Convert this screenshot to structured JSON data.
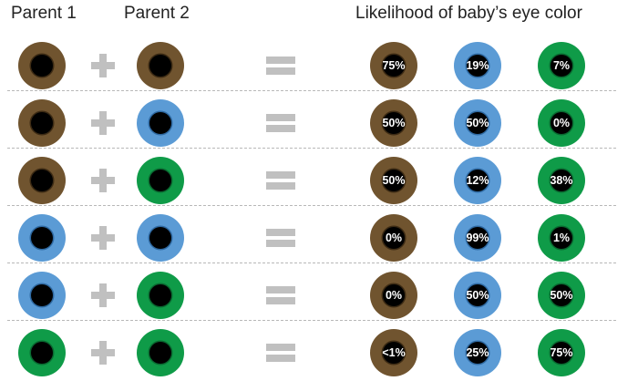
{
  "headers": {
    "parent1": "Parent 1",
    "parent2": "Parent 2",
    "likelihood": "Likelihood of baby’s eye color"
  },
  "colors": {
    "brown": "#70542f",
    "blue": "#5b9bd5",
    "green": "#0f9b48",
    "pupil": "#000000",
    "operator": "#c0c0c0",
    "separator": "#b8b8b8"
  },
  "rows": [
    {
      "parent1": "brown",
      "parent2": "brown",
      "brown": "75%",
      "blue": "19%",
      "green": "7%"
    },
    {
      "parent1": "brown",
      "parent2": "blue",
      "brown": "50%",
      "blue": "50%",
      "green": "0%"
    },
    {
      "parent1": "brown",
      "parent2": "green",
      "brown": "50%",
      "blue": "12%",
      "green": "38%"
    },
    {
      "parent1": "blue",
      "parent2": "blue",
      "brown": "0%",
      "blue": "99%",
      "green": "1%"
    },
    {
      "parent1": "blue",
      "parent2": "green",
      "brown": "0%",
      "blue": "50%",
      "green": "50%"
    },
    {
      "parent1": "green",
      "parent2": "green",
      "brown": "<1%",
      "blue": "25%",
      "green": "75%"
    }
  ]
}
